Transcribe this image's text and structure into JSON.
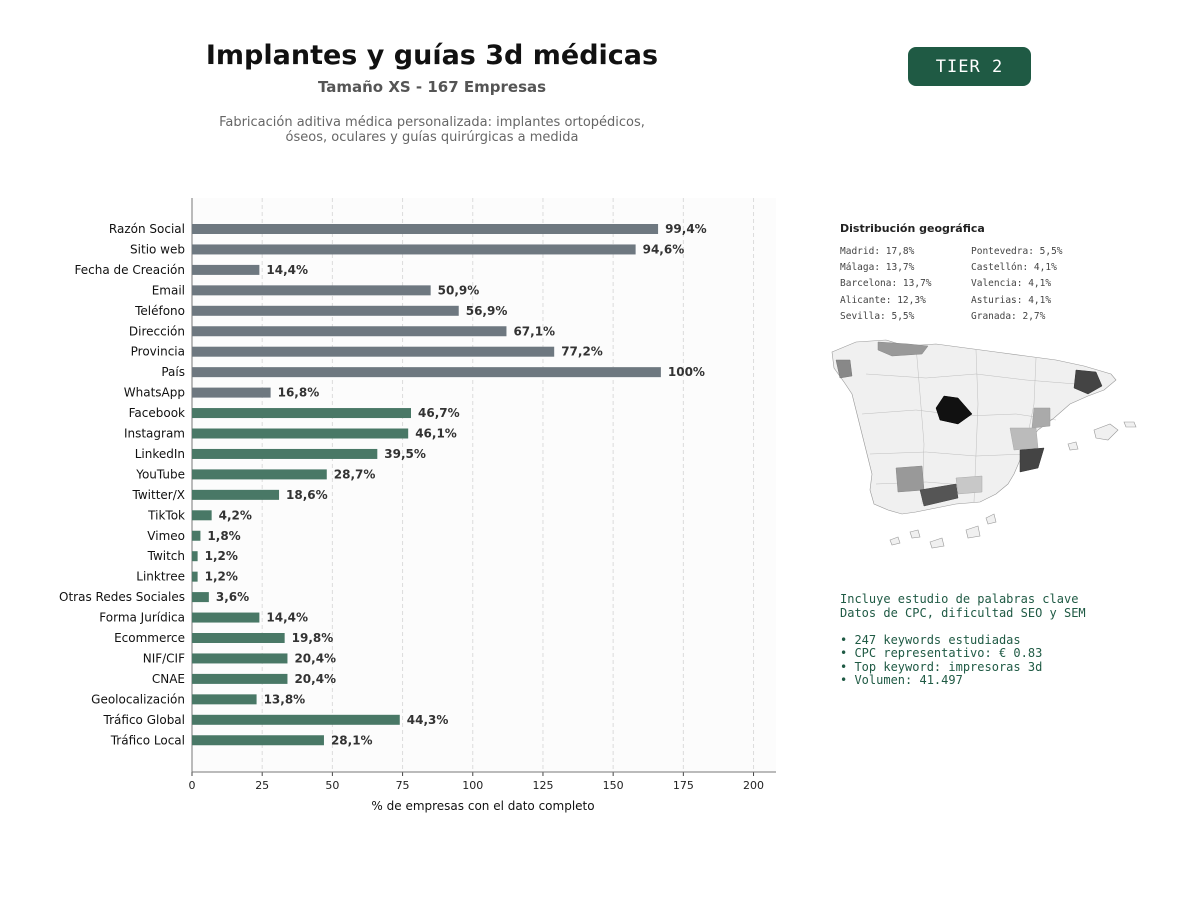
{
  "header": {
    "title": "Implantes y guías 3d médicas",
    "subtitle": "Tamaño XS - 167 Empresas",
    "description_lines": [
      "Fabricación aditiva médica personalizada: implantes ortopédicos,",
      "óseos, oculares y guías quirúrgicas a medida"
    ],
    "tier_label": "TIER 2"
  },
  "colors": {
    "contact_bar": "#6e7880",
    "social_bar": "#497866",
    "tier_bg": "#1f5a44",
    "keyword_text": "#1f5a44"
  },
  "chart_data": {
    "type": "bar",
    "orientation": "horizontal",
    "xlabel": "% de empresas con el dato completo",
    "xlim": [
      0,
      208
    ],
    "xticks": [
      0,
      25,
      50,
      75,
      100,
      125,
      150,
      175,
      200
    ],
    "grid": "vertical dashed",
    "categories": [
      "Razón Social",
      "Sitio web",
      "Fecha de Creación",
      "Email",
      "Teléfono",
      "Dirección",
      "Provincia",
      "País",
      "WhatsApp",
      "Facebook",
      "Instagram",
      "LinkedIn",
      "YouTube",
      "Twitter/X",
      "TikTok",
      "Vimeo",
      "Twitch",
      "Linktree",
      "Otras Redes Sociales",
      "Forma Jurídica",
      "Ecommerce",
      "NIF/CIF",
      "CNAE",
      "Geolocalización",
      "Tráfico Global",
      "Tráfico Local"
    ],
    "values": [
      166,
      158,
      24,
      85,
      95,
      112,
      129,
      167,
      28,
      78,
      77,
      66,
      48,
      31,
      7,
      3,
      2,
      2,
      6,
      24,
      33,
      34,
      34,
      23,
      74,
      47
    ],
    "value_labels": [
      "99,4%",
      "94,6%",
      "14,4%",
      "50,9%",
      "56,9%",
      "67,1%",
      "77,2%",
      "100%",
      "16,8%",
      "46,7%",
      "46,1%",
      "39,5%",
      "28,7%",
      "18,6%",
      "4,2%",
      "1,8%",
      "1,2%",
      "1,2%",
      "3,6%",
      "14,4%",
      "19,8%",
      "20,4%",
      "20,4%",
      "13,8%",
      "44,3%",
      "28,1%"
    ],
    "bar_groups": [
      "contact",
      "contact",
      "contact",
      "contact",
      "contact",
      "contact",
      "contact",
      "contact",
      "contact",
      "social",
      "social",
      "social",
      "social",
      "social",
      "social",
      "social",
      "social",
      "social",
      "social",
      "social",
      "social",
      "social",
      "social",
      "social",
      "social",
      "social"
    ]
  },
  "geo": {
    "title": "Distribución geográfica",
    "col1": [
      "Madrid: 17,8%",
      "Málaga: 13,7%",
      "Barcelona: 13,7%",
      "Alicante: 12,3%",
      "Sevilla: 5,5%"
    ],
    "col2": [
      "Pontevedra: 5,5%",
      "Castellón: 4,1%",
      "Valencia: 4,1%",
      "Asturias: 4,1%",
      "Granada: 2,7%"
    ]
  },
  "keywords": {
    "lines": [
      "Incluye estudio de palabras clave",
      "Datos de CPC, dificultad SEO y SEM",
      "",
      "• 247 keywords estudiadas",
      "• CPC representativo: € 0.83",
      "• Top keyword: impresoras 3d",
      "• Volumen: 41.497"
    ]
  }
}
